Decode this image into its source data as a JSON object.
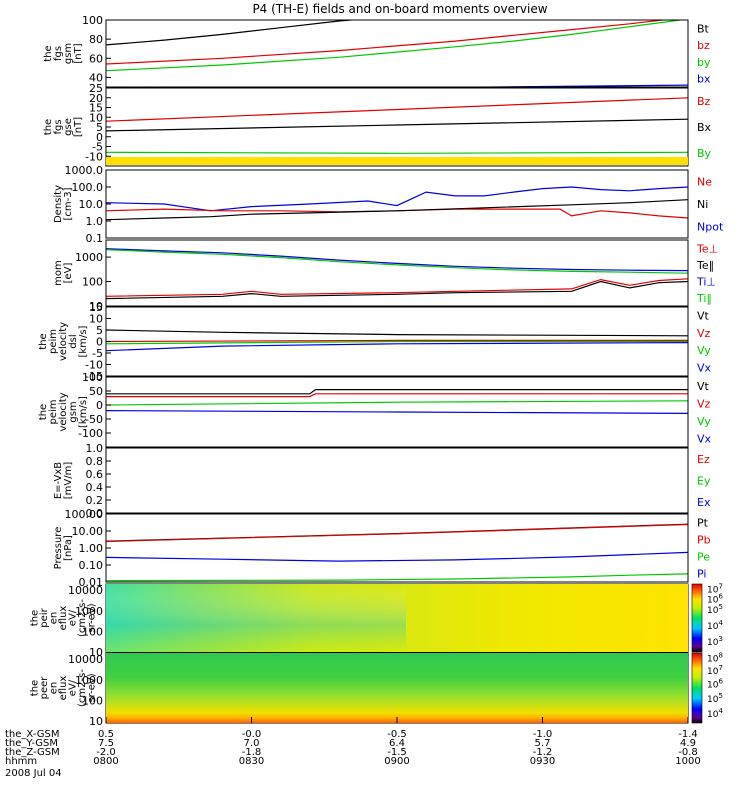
{
  "title": "P4 (TH-E) fields and on-board moments overview",
  "colors": {
    "black": "#000000",
    "red": "#e00000",
    "green": "#00c800",
    "blue": "#0000e0",
    "yellow": "#ffe000"
  },
  "chart_data": [
    {
      "type": "line",
      "ylabel_lines": [
        "the",
        "fgs",
        "gsm",
        "[nT]"
      ],
      "ylim": [
        30,
        100
      ],
      "yticks": [
        {
          "v": 40,
          "label": "40"
        },
        {
          "v": 60,
          "label": "60"
        },
        {
          "v": 80,
          "label": "80"
        },
        {
          "v": 100,
          "label": "100"
        }
      ],
      "legend": [
        {
          "name": "Bt",
          "color": "#000000"
        },
        {
          "name": "bz",
          "color": "#e00000"
        },
        {
          "name": "by",
          "color": "#00c800"
        },
        {
          "name": "bx",
          "color": "#0000e0"
        }
      ],
      "series": [
        {
          "name": "Bt",
          "color": "#000000",
          "x": [
            0,
            0.1,
            0.2,
            0.3,
            0.4,
            0.5
          ],
          "y": [
            74,
            79,
            85,
            92,
            99,
            104
          ]
        },
        {
          "name": "bz",
          "color": "#e00000",
          "x": [
            0,
            0.2,
            0.4,
            0.6,
            0.7,
            0.8,
            0.9,
            1.0
          ],
          "y": [
            54,
            60,
            68,
            78,
            84,
            90,
            96,
            103
          ]
        },
        {
          "name": "by",
          "color": "#00c800",
          "x": [
            0,
            0.2,
            0.4,
            0.6,
            0.7,
            0.8,
            0.9,
            1.0
          ],
          "y": [
            47,
            53,
            61,
            72,
            78,
            85,
            93,
            101
          ]
        },
        {
          "name": "bx",
          "color": "#0000e0",
          "x": [
            0,
            0.5,
            1.0
          ],
          "y": [
            28,
            29,
            32
          ]
        }
      ]
    },
    {
      "type": "line",
      "ylabel_lines": [
        "the",
        "fgs",
        "gse",
        "[nT]"
      ],
      "ylim": [
        -15,
        25
      ],
      "yticks": [
        {
          "v": -10,
          "label": "-10"
        },
        {
          "v": -5,
          "label": "-5"
        },
        {
          "v": 0,
          "label": "0"
        },
        {
          "v": 5,
          "label": "5"
        },
        {
          "v": 10,
          "label": "10"
        },
        {
          "v": 15,
          "label": "15"
        },
        {
          "v": 20,
          "label": "20"
        },
        {
          "v": 25,
          "label": "25"
        }
      ],
      "legend": [
        {
          "name": "Bz",
          "color": "#e00000"
        },
        {
          "name": "Bx",
          "color": "#000000"
        },
        {
          "name": "By",
          "color": "#00c800"
        }
      ],
      "series": [
        {
          "name": "Bz",
          "color": "#e00000",
          "x": [
            0,
            0.5,
            1.0
          ],
          "y": [
            8,
            14,
            20
          ]
        },
        {
          "name": "Bx",
          "color": "#000000",
          "x": [
            0,
            0.5,
            1.0
          ],
          "y": [
            3,
            6,
            9
          ]
        },
        {
          "name": "By",
          "color": "#00c800",
          "x": [
            0,
            0.5,
            1.0
          ],
          "y": [
            -8,
            -8.5,
            -8
          ]
        }
      ]
    },
    {
      "type": "line",
      "ylabel_lines": [
        "Density",
        "[cm-3]"
      ],
      "yscale": "log",
      "ylim": [
        0.1,
        1000
      ],
      "yticks": [
        {
          "v": 0.1,
          "label": "0.1"
        },
        {
          "v": 1,
          "label": "1.0"
        },
        {
          "v": 10,
          "label": "10.0"
        },
        {
          "v": 100,
          "label": "100.0"
        },
        {
          "v": 1000,
          "label": "1000.0"
        }
      ],
      "legend": [
        {
          "name": "Ne",
          "color": "#e00000"
        },
        {
          "name": "Ni",
          "color": "#000000"
        },
        {
          "name": "Npot",
          "color": "#0000e0"
        }
      ],
      "series": [
        {
          "name": "Npot",
          "color": "#0000e0",
          "x": [
            0,
            0.1,
            0.18,
            0.25,
            0.35,
            0.45,
            0.5,
            0.55,
            0.6,
            0.65,
            0.7,
            0.75,
            0.8,
            0.85,
            0.9,
            0.95,
            1.0
          ],
          "y": [
            12,
            10,
            4,
            7,
            10,
            15,
            8,
            50,
            30,
            30,
            50,
            80,
            100,
            70,
            60,
            80,
            100
          ]
        },
        {
          "name": "Ne",
          "color": "#e00000",
          "x": [
            0,
            0.1,
            0.2,
            0.3,
            0.4,
            0.5,
            0.6,
            0.7,
            0.78,
            0.8,
            0.85,
            0.9,
            0.95,
            1.0
          ],
          "y": [
            4,
            5,
            4,
            4,
            3.5,
            4,
            5,
            5,
            5,
            2,
            4,
            3,
            2,
            1.5
          ]
        },
        {
          "name": "Ni",
          "color": "#000000",
          "x": [
            0,
            0.1,
            0.18,
            0.25,
            0.35,
            0.5,
            0.65,
            0.8,
            0.9,
            1.0
          ],
          "y": [
            1.2,
            1.5,
            1.8,
            2.5,
            3,
            4,
            6,
            9,
            12,
            18
          ]
        }
      ]
    },
    {
      "type": "line",
      "ylabel_lines": [
        "mom",
        "[eV]"
      ],
      "yscale": "log",
      "ylim": [
        10,
        5000
      ],
      "yticks": [
        {
          "v": 10,
          "label": "10"
        },
        {
          "v": 100,
          "label": "100"
        },
        {
          "v": 1000,
          "label": "1000"
        }
      ],
      "legend": [
        {
          "name": "Te⊥",
          "color": "#e00000"
        },
        {
          "name": "Te‖",
          "color": "#000000"
        },
        {
          "name": "Ti⊥",
          "color": "#0000e0"
        },
        {
          "name": "Ti‖",
          "color": "#00c800"
        }
      ],
      "series": [
        {
          "name": "Ti⊥",
          "color": "#0000e0",
          "x": [
            0,
            0.1,
            0.2,
            0.3,
            0.4,
            0.5,
            0.6,
            0.7,
            0.8,
            0.9,
            1.0
          ],
          "y": [
            2200,
            1800,
            1500,
            1100,
            750,
            550,
            420,
            350,
            310,
            290,
            280
          ]
        },
        {
          "name": "Ti‖",
          "color": "#00c800",
          "x": [
            0,
            0.1,
            0.2,
            0.3,
            0.4,
            0.5,
            0.6,
            0.7,
            0.8,
            0.9,
            1.0
          ],
          "y": [
            2000,
            1600,
            1300,
            950,
            650,
            480,
            370,
            300,
            260,
            240,
            220
          ]
        },
        {
          "name": "Te⊥",
          "color": "#e00000",
          "x": [
            0,
            0.2,
            0.25,
            0.3,
            0.5,
            0.6,
            0.8,
            0.85,
            0.9,
            0.95,
            1.0
          ],
          "y": [
            25,
            30,
            40,
            30,
            35,
            40,
            50,
            120,
            70,
            110,
            130
          ]
        },
        {
          "name": "Te‖",
          "color": "#000000",
          "x": [
            0,
            0.2,
            0.25,
            0.3,
            0.5,
            0.6,
            0.8,
            0.85,
            0.9,
            0.95,
            1.0
          ],
          "y": [
            20,
            25,
            32,
            25,
            30,
            35,
            40,
            100,
            55,
            90,
            100
          ]
        }
      ]
    },
    {
      "type": "line",
      "ylabel_lines": [
        "the",
        "peim",
        "velocity",
        "dsl",
        "[km/s]"
      ],
      "ylim": [
        -15,
        15
      ],
      "yticks": [
        {
          "v": -15,
          "label": "-15"
        },
        {
          "v": -10,
          "label": "-10"
        },
        {
          "v": -5,
          "label": "-5"
        },
        {
          "v": 0,
          "label": "0"
        },
        {
          "v": 5,
          "label": "5"
        },
        {
          "v": 10,
          "label": "10"
        },
        {
          "v": 15,
          "label": "15"
        }
      ],
      "legend": [
        {
          "name": "Vt",
          "color": "#000000"
        },
        {
          "name": "Vz",
          "color": "#e00000"
        },
        {
          "name": "Vy",
          "color": "#00c800"
        },
        {
          "name": "Vx",
          "color": "#0000e0"
        }
      ],
      "series": [
        {
          "name": "Vt",
          "color": "#000000",
          "x": [
            0,
            0.2,
            0.5,
            1.0
          ],
          "y": [
            5,
            4,
            3,
            2.5
          ]
        },
        {
          "name": "Vz",
          "color": "#e00000",
          "x": [
            0,
            0.5,
            1.0
          ],
          "y": [
            0,
            0.5,
            0.5
          ]
        },
        {
          "name": "Vy",
          "color": "#00c800",
          "x": [
            0,
            0.5,
            1.0
          ],
          "y": [
            -1,
            0,
            0
          ]
        },
        {
          "name": "Vx",
          "color": "#0000e0",
          "x": [
            0,
            0.2,
            0.5,
            1.0
          ],
          "y": [
            -4,
            -2,
            -1,
            -0.5
          ]
        }
      ]
    },
    {
      "type": "line",
      "ylabel_lines": [
        "the",
        "peim",
        "velocity",
        "gsm",
        "[km/s]"
      ],
      "ylim": [
        -150,
        100
      ],
      "yticks": [
        {
          "v": -100,
          "label": "-100"
        },
        {
          "v": -50,
          "label": "-50"
        },
        {
          "v": 0,
          "label": "0"
        },
        {
          "v": 50,
          "label": "50"
        },
        {
          "v": 100,
          "label": "100"
        }
      ],
      "legend": [
        {
          "name": "Vt",
          "color": "#000000"
        },
        {
          "name": "Vz",
          "color": "#e00000"
        },
        {
          "name": "Vy",
          "color": "#00c800"
        },
        {
          "name": "Vx",
          "color": "#0000e0"
        }
      ],
      "series": [
        {
          "name": "Vt",
          "color": "#000000",
          "x": [
            0,
            0.35,
            0.36,
            1.0
          ],
          "y": [
            40,
            40,
            55,
            55
          ]
        },
        {
          "name": "Vz",
          "color": "#e00000",
          "x": [
            0,
            0.35,
            0.36,
            1.0
          ],
          "y": [
            30,
            30,
            40,
            40
          ]
        },
        {
          "name": "Vy",
          "color": "#00c800",
          "x": [
            0,
            0.5,
            1.0
          ],
          "y": [
            0,
            10,
            15
          ]
        },
        {
          "name": "Vx",
          "color": "#0000e0",
          "x": [
            0,
            0.5,
            1.0
          ],
          "y": [
            -20,
            -25,
            -30
          ]
        }
      ]
    },
    {
      "type": "line",
      "ylabel_lines": [
        "E=-VxB",
        "[mV/m]"
      ],
      "ylim": [
        0,
        1
      ],
      "yticks": [
        {
          "v": 0,
          "label": "0.0"
        },
        {
          "v": 0.2,
          "label": "0.2"
        },
        {
          "v": 0.4,
          "label": "0.4"
        },
        {
          "v": 0.6,
          "label": "0.6"
        },
        {
          "v": 0.8,
          "label": "0.8"
        },
        {
          "v": 1,
          "label": "1.0"
        }
      ],
      "legend": [
        {
          "name": "Ez",
          "color": "#e00000"
        },
        {
          "name": "Ey",
          "color": "#00c800"
        },
        {
          "name": "Ex",
          "color": "#0000e0"
        }
      ],
      "series": []
    },
    {
      "type": "line",
      "ylabel_lines": [
        "Pressure",
        "[nPa]"
      ],
      "yscale": "log",
      "ylim": [
        0.01,
        100
      ],
      "yticks": [
        {
          "v": 0.01,
          "label": "0.01"
        },
        {
          "v": 0.1,
          "label": "0.10"
        },
        {
          "v": 1,
          "label": "1.00"
        },
        {
          "v": 10,
          "label": "10.00"
        },
        {
          "v": 100,
          "label": "100.00"
        }
      ],
      "legend": [
        {
          "name": "Pt",
          "color": "#000000"
        },
        {
          "name": "Pb",
          "color": "#e00000"
        },
        {
          "name": "Pe",
          "color": "#00c800"
        },
        {
          "name": "Pi",
          "color": "#0000e0"
        }
      ],
      "series": [
        {
          "name": "Pt",
          "color": "#000000",
          "x": [
            0,
            0.5,
            1.0
          ],
          "y": [
            2.5,
            7,
            25
          ]
        },
        {
          "name": "Pb",
          "color": "#e00000",
          "x": [
            0,
            0.5,
            1.0
          ],
          "y": [
            2.4,
            6.8,
            24
          ]
        },
        {
          "name": "Pi",
          "color": "#0000e0",
          "x": [
            0,
            0.2,
            0.4,
            0.6,
            0.8,
            1.0
          ],
          "y": [
            0.28,
            0.22,
            0.17,
            0.2,
            0.3,
            0.55
          ]
        },
        {
          "name": "Pe",
          "color": "#00c800",
          "x": [
            0,
            0.4,
            0.6,
            0.8,
            0.9,
            1.0
          ],
          "y": [
            0.012,
            0.013,
            0.015,
            0.02,
            0.025,
            0.03
          ]
        }
      ]
    },
    {
      "type": "heatmap",
      "ylabel_lines": [
        "the",
        "peir",
        "en",
        "eflux",
        "eV/",
        "(cm2-s-",
        "sr-eV)"
      ],
      "yscale": "log",
      "ylim": [
        10,
        20000
      ],
      "yticks": [
        {
          "v": 10,
          "label": "10"
        },
        {
          "v": 100,
          "label": "100"
        },
        {
          "v": 1000,
          "label": "1000"
        },
        {
          "v": 10000,
          "label": "10000"
        }
      ],
      "colorbar": {
        "ticks": [
          {
            "exp": "3",
            "frac": 0.15
          },
          {
            "exp": "4",
            "frac": 0.38
          },
          {
            "exp": "5",
            "frac": 0.62
          },
          {
            "exp": "6",
            "frac": 0.77
          },
          {
            "exp": "7",
            "frac": 0.92
          }
        ]
      }
    },
    {
      "type": "heatmap",
      "ylabel_lines": [
        "the",
        "peer",
        "en",
        "eflux",
        "eV/",
        "(cm2-s-",
        "sr-eV)"
      ],
      "yscale": "log",
      "ylim": [
        8,
        20000
      ],
      "yticks": [
        {
          "v": 10,
          "label": "10"
        },
        {
          "v": 100,
          "label": "100"
        },
        {
          "v": 1000,
          "label": "1000"
        },
        {
          "v": 10000,
          "label": "10000"
        }
      ],
      "colorbar": {
        "ticks": [
          {
            "exp": "4",
            "frac": 0.13
          },
          {
            "exp": "5",
            "frac": 0.34
          },
          {
            "exp": "6",
            "frac": 0.55
          },
          {
            "exp": "7",
            "frac": 0.74
          },
          {
            "exp": "8",
            "frac": 0.92
          }
        ]
      }
    }
  ],
  "x_axis": {
    "tick_positions": [
      0,
      0.25,
      0.5,
      0.75,
      1.0
    ],
    "rows": [
      {
        "label": "the_X-GSM",
        "values": [
          "0.5",
          "-0.0",
          "-0.5",
          "-1.0",
          "-1.4"
        ]
      },
      {
        "label": "the_Y-GSM",
        "values": [
          "7.5",
          "7.0",
          "6.4",
          "5.7",
          "4.9"
        ]
      },
      {
        "label": "the_Z-GSM",
        "values": [
          "-2.0",
          "-1.8",
          "-1.5",
          "-1.2",
          "-0.8"
        ]
      },
      {
        "label": "hhmm",
        "values": [
          "0800",
          "0830",
          "0900",
          "0930",
          "1000"
        ]
      }
    ],
    "date": "2008 Jul 04"
  }
}
